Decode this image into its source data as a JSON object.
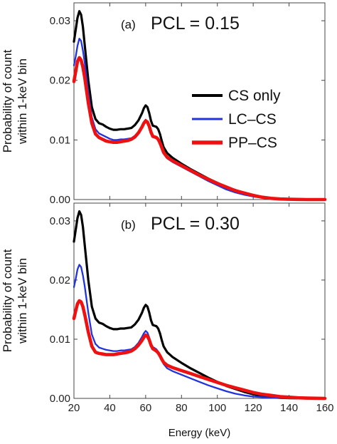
{
  "chart_data": [
    {
      "type": "line",
      "panel_label": "(a)",
      "title": "PCL = 0.15",
      "xlabel": "Energy (keV)",
      "ylabel": [
        "Probability of count",
        "within 1-keV bin"
      ],
      "xlim": [
        20,
        160
      ],
      "ylim": [
        0,
        0.033
      ],
      "xticks": [
        "20",
        "40",
        "60",
        "80",
        "100",
        "120",
        "140",
        "160"
      ],
      "yticks": [
        "0.00",
        "0.01",
        "0.02",
        "0.03"
      ],
      "grid": false,
      "legend": {
        "position": "right",
        "entries": [
          "CS only",
          "LC–CS",
          "PP–CS"
        ]
      },
      "x": [
        20,
        21,
        22,
        23,
        24,
        25,
        26,
        28,
        30,
        32,
        34,
        36,
        38,
        40,
        42,
        44,
        46,
        48,
        50,
        52,
        54,
        56,
        58,
        59,
        60,
        61,
        62,
        63,
        64,
        65,
        66,
        67,
        68,
        69,
        70,
        72,
        75,
        80,
        85,
        90,
        95,
        100,
        105,
        110,
        115,
        120,
        125,
        130,
        135,
        140,
        145,
        150,
        155,
        160
      ],
      "series": [
        {
          "name": "CS only",
          "color": "#000000",
          "values": [
            0.0265,
            0.0285,
            0.0305,
            0.0316,
            0.031,
            0.029,
            0.026,
            0.02,
            0.0155,
            0.0135,
            0.0128,
            0.0126,
            0.0122,
            0.0119,
            0.0117,
            0.0117,
            0.0118,
            0.0118,
            0.0119,
            0.012,
            0.0125,
            0.0133,
            0.0145,
            0.0153,
            0.0158,
            0.0155,
            0.0145,
            0.0132,
            0.0124,
            0.0123,
            0.0122,
            0.0118,
            0.011,
            0.0098,
            0.0088,
            0.0078,
            0.007,
            0.006,
            0.0051,
            0.0043,
            0.0035,
            0.0028,
            0.0021,
            0.0016,
            0.0011,
            0.0007,
            0.0004,
            0.0002,
            0.0001,
            5e-05,
            2e-05,
            0.0,
            0.0,
            0.0
          ]
        },
        {
          "name": "LC–CS",
          "color": "#2233dd",
          "values": [
            0.0225,
            0.024,
            0.0258,
            0.027,
            0.0266,
            0.025,
            0.023,
            0.018,
            0.0138,
            0.0118,
            0.0111,
            0.0108,
            0.0105,
            0.0102,
            0.01,
            0.01,
            0.0101,
            0.0101,
            0.0102,
            0.0103,
            0.0107,
            0.0114,
            0.0123,
            0.013,
            0.0134,
            0.0131,
            0.0123,
            0.0113,
            0.0106,
            0.0105,
            0.0104,
            0.0101,
            0.0094,
            0.0085,
            0.0077,
            0.0069,
            0.0063,
            0.0055,
            0.0047,
            0.0039,
            0.0031,
            0.0024,
            0.0017,
            0.0012,
            0.0008,
            0.0005,
            0.0003,
            0.0001,
            5e-05,
            2e-05,
            0.0,
            0.0,
            0.0,
            0.0
          ]
        },
        {
          "name": "PP–CS",
          "color": "#ee1111",
          "values": [
            0.0198,
            0.0215,
            0.0232,
            0.0238,
            0.0234,
            0.0222,
            0.0205,
            0.0162,
            0.0128,
            0.011,
            0.0104,
            0.0101,
            0.0098,
            0.0097,
            0.0096,
            0.0096,
            0.0097,
            0.0098,
            0.0099,
            0.0101,
            0.0105,
            0.0112,
            0.0122,
            0.0128,
            0.0132,
            0.013,
            0.0123,
            0.0113,
            0.0106,
            0.0105,
            0.0104,
            0.0101,
            0.0095,
            0.0087,
            0.0079,
            0.0071,
            0.0065,
            0.0057,
            0.0049,
            0.0041,
            0.0034,
            0.0027,
            0.0021,
            0.0015,
            0.0011,
            0.0007,
            0.0004,
            0.0002,
            0.0001,
            5e-05,
            2e-05,
            0.0,
            0.0,
            0.0
          ]
        }
      ]
    },
    {
      "type": "line",
      "panel_label": "(b)",
      "title": "PCL = 0.30",
      "xlabel": "Energy (keV)",
      "ylabel": [
        "Probability of count",
        "within 1-keV bin"
      ],
      "xlim": [
        20,
        160
      ],
      "ylim": [
        0,
        0.033
      ],
      "xticks": [
        "20",
        "40",
        "60",
        "80",
        "100",
        "120",
        "140",
        "160"
      ],
      "yticks": [
        "0.00",
        "0.01",
        "0.02",
        "0.03"
      ],
      "grid": false,
      "x": [
        20,
        21,
        22,
        23,
        24,
        25,
        26,
        28,
        30,
        32,
        34,
        36,
        38,
        40,
        42,
        44,
        46,
        48,
        50,
        52,
        54,
        56,
        58,
        59,
        60,
        61,
        62,
        63,
        64,
        65,
        66,
        67,
        68,
        69,
        70,
        72,
        75,
        80,
        85,
        90,
        95,
        100,
        105,
        110,
        115,
        120,
        125,
        130,
        135,
        140,
        145,
        150,
        155,
        160
      ],
      "series": [
        {
          "name": "CS only",
          "color": "#000000",
          "values": [
            0.0265,
            0.0285,
            0.0305,
            0.0316,
            0.031,
            0.029,
            0.026,
            0.02,
            0.0155,
            0.0135,
            0.0128,
            0.0126,
            0.0122,
            0.0119,
            0.0117,
            0.0117,
            0.0118,
            0.0118,
            0.0119,
            0.012,
            0.0125,
            0.0133,
            0.0145,
            0.0153,
            0.0158,
            0.0155,
            0.0145,
            0.0132,
            0.0124,
            0.0123,
            0.0122,
            0.0118,
            0.011,
            0.0098,
            0.0088,
            0.0078,
            0.007,
            0.006,
            0.0051,
            0.0043,
            0.0035,
            0.0028,
            0.0021,
            0.0016,
            0.0011,
            0.0007,
            0.0004,
            0.0002,
            0.0001,
            5e-05,
            2e-05,
            0.0,
            0.0,
            0.0
          ]
        },
        {
          "name": "LC–CS",
          "color": "#2233dd",
          "values": [
            0.0188,
            0.0202,
            0.0218,
            0.0226,
            0.0222,
            0.0208,
            0.019,
            0.0145,
            0.0108,
            0.0092,
            0.0086,
            0.0084,
            0.0082,
            0.0081,
            0.008,
            0.008,
            0.0081,
            0.0081,
            0.0082,
            0.0083,
            0.0087,
            0.0094,
            0.0104,
            0.011,
            0.0114,
            0.0111,
            0.0103,
            0.0093,
            0.0087,
            0.0085,
            0.0083,
            0.0079,
            0.0073,
            0.0065,
            0.0058,
            0.0051,
            0.0046,
            0.004,
            0.0034,
            0.0028,
            0.0022,
            0.0017,
            0.0012,
            0.0008,
            0.0005,
            0.0003,
            0.0002,
            0.0001,
            5e-05,
            2e-05,
            0.0,
            0.0,
            0.0,
            0.0
          ]
        },
        {
          "name": "PP–CS",
          "color": "#ee1111",
          "values": [
            0.0135,
            0.0148,
            0.016,
            0.0165,
            0.0163,
            0.0155,
            0.0142,
            0.0112,
            0.0088,
            0.0078,
            0.0076,
            0.0075,
            0.0074,
            0.0074,
            0.0074,
            0.0075,
            0.0076,
            0.0077,
            0.0078,
            0.008,
            0.0084,
            0.009,
            0.0098,
            0.0103,
            0.0107,
            0.0105,
            0.0099,
            0.009,
            0.0084,
            0.0082,
            0.008,
            0.0077,
            0.0072,
            0.0066,
            0.0061,
            0.0056,
            0.0052,
            0.0047,
            0.0042,
            0.0037,
            0.0032,
            0.0027,
            0.0022,
            0.0018,
            0.0014,
            0.001,
            0.0007,
            0.0005,
            0.0003,
            0.0002,
            0.0001,
            5e-05,
            2e-05,
            0.0
          ]
        }
      ]
    }
  ]
}
